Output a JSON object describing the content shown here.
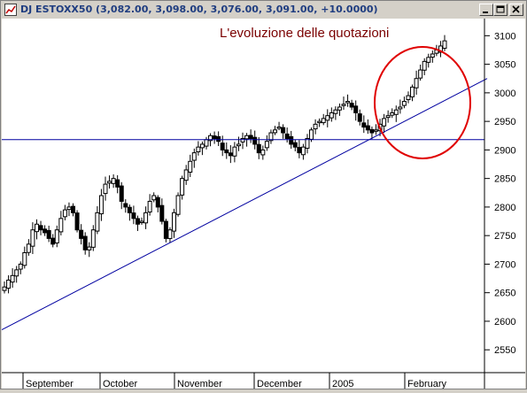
{
  "window": {
    "title": "DJ ESTOXX50 (3,082.00, 3,098.00, 3,076.00, 3,091.00, +10.0000)"
  },
  "annotation": "L'evoluzione delle quotazioni",
  "chart_data": {
    "type": "candlestick",
    "title": "L'evoluzione delle quotazioni",
    "y_ticks": [
      "3100",
      "3050",
      "3000",
      "2950",
      "2900",
      "2850",
      "2800",
      "2750",
      "2700",
      "2650",
      "2600",
      "2550"
    ],
    "x_months": [
      "September",
      "October",
      "November",
      "December",
      "2005",
      "February"
    ],
    "ylim": [
      2510,
      3130
    ],
    "horizontal_line": 2918,
    "trendline": {
      "from": [
        0,
        2585
      ],
      "to": [
        548,
        3025
      ]
    },
    "highlight": "ellipse around latest rally",
    "ohlc": [
      2660,
      2672,
      2680,
      2690,
      2700,
      2720,
      2735,
      2760,
      2770,
      2760,
      2755,
      2745,
      2735,
      2760,
      2780,
      2795,
      2800,
      2790,
      2760,
      2745,
      2725,
      2730,
      2760,
      2790,
      2820,
      2840,
      2845,
      2850,
      2835,
      2810,
      2800,
      2790,
      2780,
      2770,
      2775,
      2790,
      2810,
      2820,
      2800,
      2775,
      2745,
      2760,
      2790,
      2820,
      2850,
      2865,
      2880,
      2895,
      2905,
      2910,
      2918,
      2925,
      2920,
      2915,
      2900,
      2895,
      2890,
      2905,
      2910,
      2920,
      2925,
      2920,
      2910,
      2895,
      2900,
      2915,
      2930,
      2935,
      2940,
      2930,
      2920,
      2910,
      2905,
      2895,
      2905,
      2920,
      2935,
      2945,
      2950,
      2955,
      2960,
      2965,
      2970,
      2975,
      2980,
      2985,
      2975,
      2965,
      2950,
      2940,
      2935,
      2930,
      2935,
      2945,
      2955,
      2960,
      2965,
      2970,
      2975,
      2985,
      2995,
      3010,
      3025,
      3040,
      3055,
      3062,
      3068,
      3075,
      3082,
      3091
    ]
  }
}
